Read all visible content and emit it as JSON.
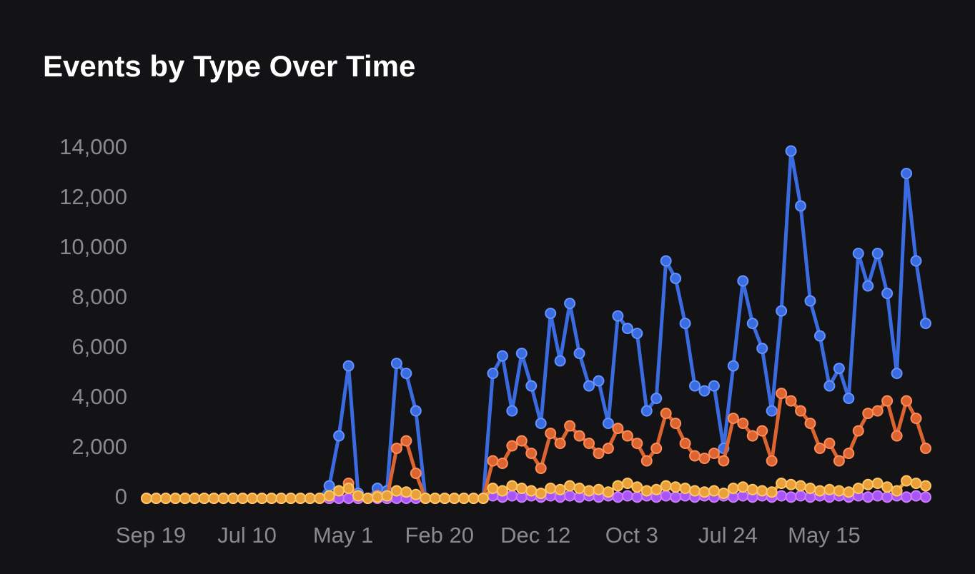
{
  "chart_data": {
    "type": "line",
    "title": "Events by Type Over Time",
    "categories": [
      "Sep 19",
      null,
      null,
      null,
      null,
      null,
      null,
      null,
      null,
      null,
      "Jul 10",
      null,
      null,
      null,
      null,
      null,
      null,
      null,
      null,
      null,
      "May 1",
      null,
      null,
      null,
      null,
      null,
      null,
      null,
      null,
      null,
      "Feb 20",
      null,
      null,
      null,
      null,
      null,
      null,
      null,
      null,
      null,
      "Dec 12",
      null,
      null,
      null,
      null,
      null,
      null,
      null,
      null,
      null,
      "Oct 3",
      null,
      null,
      null,
      null,
      null,
      null,
      null,
      null,
      null,
      "Jul 24",
      null,
      null,
      null,
      null,
      null,
      null,
      null,
      null,
      null,
      "May 15",
      null,
      null,
      null,
      null,
      null,
      null,
      null,
      null,
      null,
      null,
      null
    ],
    "series": [
      {
        "color": "#3b6be0",
        "values": [
          0,
          0,
          0,
          0,
          0,
          0,
          0,
          0,
          0,
          0,
          0,
          0,
          0,
          0,
          0,
          0,
          0,
          0,
          0,
          500,
          2500,
          5300,
          200,
          0,
          400,
          300,
          5400,
          5000,
          3500,
          0,
          0,
          0,
          0,
          0,
          0,
          0,
          5000,
          5700,
          3500,
          5800,
          4500,
          3000,
          7400,
          5500,
          7800,
          5800,
          4500,
          4700,
          3000,
          7300,
          6800,
          6600,
          3500,
          4000,
          9500,
          8800,
          7000,
          4500,
          4300,
          4500,
          2000,
          5300,
          8700,
          7000,
          6000,
          3500,
          7500,
          13900,
          11700,
          7900,
          6500,
          4500,
          5200,
          4000,
          9800,
          8500,
          9800,
          8200,
          5000,
          13000,
          9500,
          7000
        ]
      },
      {
        "color": "#dc6430",
        "values": [
          0,
          0,
          0,
          0,
          0,
          0,
          0,
          0,
          0,
          0,
          0,
          0,
          0,
          0,
          0,
          0,
          0,
          0,
          0,
          0,
          0,
          600,
          0,
          0,
          100,
          0,
          2000,
          2300,
          1000,
          0,
          0,
          0,
          0,
          0,
          0,
          0,
          1500,
          1400,
          2100,
          2300,
          1800,
          1200,
          2600,
          2200,
          2900,
          2500,
          2200,
          1800,
          2000,
          2800,
          2500,
          2200,
          1500,
          2000,
          3400,
          3000,
          2200,
          1700,
          1600,
          1800,
          1500,
          3200,
          3000,
          2500,
          2700,
          1500,
          4200,
          3900,
          3500,
          3000,
          2000,
          2200,
          1500,
          1800,
          2700,
          3400,
          3500,
          3900,
          2500,
          3900,
          3200,
          2000
        ]
      },
      {
        "color": "#a855f7",
        "values": [
          0,
          0,
          0,
          0,
          0,
          0,
          0,
          0,
          0,
          0,
          0,
          0,
          0,
          0,
          0,
          0,
          0,
          0,
          0,
          0,
          0,
          0,
          0,
          0,
          0,
          0,
          0,
          0,
          0,
          0,
          0,
          0,
          0,
          0,
          0,
          0,
          100,
          50,
          100,
          50,
          100,
          50,
          100,
          50,
          100,
          50,
          100,
          50,
          100,
          50,
          100,
          50,
          100,
          50,
          100,
          50,
          100,
          50,
          100,
          50,
          100,
          50,
          100,
          50,
          100,
          50,
          100,
          50,
          100,
          50,
          100,
          50,
          100,
          50,
          100,
          50,
          100,
          50,
          100,
          50,
          100,
          50
        ]
      },
      {
        "color": "#eaa03a",
        "values": [
          0,
          0,
          0,
          0,
          0,
          0,
          0,
          0,
          0,
          0,
          0,
          0,
          0,
          0,
          0,
          0,
          0,
          0,
          0,
          100,
          300,
          400,
          100,
          0,
          50,
          100,
          300,
          250,
          150,
          0,
          0,
          0,
          0,
          0,
          0,
          0,
          400,
          300,
          500,
          400,
          300,
          200,
          400,
          350,
          500,
          400,
          300,
          350,
          250,
          500,
          600,
          450,
          300,
          350,
          500,
          450,
          400,
          300,
          250,
          300,
          200,
          400,
          450,
          350,
          300,
          250,
          600,
          550,
          500,
          400,
          300,
          350,
          300,
          250,
          400,
          550,
          600,
          450,
          300,
          700,
          600,
          500
        ]
      }
    ],
    "ylim": [
      0,
      14000
    ],
    "yticks": [
      0,
      {
        "value": 2000,
        "label": "2,000"
      },
      {
        "value": 4000,
        "label": "4,000"
      },
      {
        "value": 6000,
        "label": "6,000"
      },
      {
        "value": 8000,
        "label": "8,000"
      },
      {
        "value": 10000,
        "label": "10,000"
      },
      {
        "value": 12000,
        "label": "12,000"
      },
      {
        "value": 14000,
        "label": "14,000"
      }
    ],
    "grid": false
  }
}
